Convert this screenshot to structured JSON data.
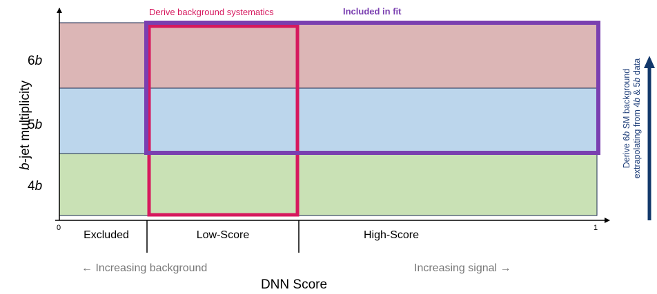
{
  "axes": {
    "y_label_italic": "b",
    "y_label_rest": "-jet multiplicity",
    "x_label": "DNN Score",
    "x_tick_min": "0",
    "x_tick_max": "1"
  },
  "rows": [
    {
      "num": "4",
      "letter": "b",
      "color": "#c9e1b5"
    },
    {
      "num": "5",
      "letter": "b",
      "color": "#bcd6ec"
    },
    {
      "num": "6",
      "letter": "b",
      "color": "#dcb6b6"
    }
  ],
  "regions": {
    "excluded": "Excluded",
    "low_score": "Low-Score",
    "high_score": "High-Score"
  },
  "boxes": {
    "systematics": {
      "label": "Derive background systematics",
      "color": "#d6195e"
    },
    "fit": {
      "label": "Included in fit",
      "color": "#7a3fb0"
    }
  },
  "arrows": {
    "left": "← Increasing background",
    "right": "Increasing signal →"
  },
  "side_note": {
    "line1": [
      "Derive 6",
      "b",
      " SM  background"
    ],
    "line2": [
      "extrapolating from 4",
      "b",
      " & 5",
      "b",
      " data"
    ],
    "arrow_color": "#12386b",
    "text_color": "#1f3f7a"
  }
}
